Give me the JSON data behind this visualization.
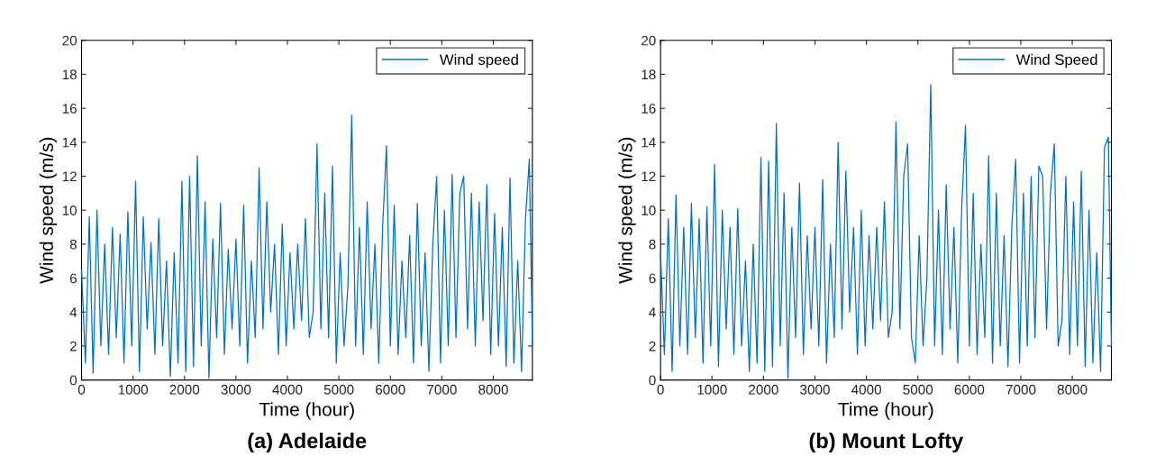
{
  "chart_data": [
    {
      "type": "line",
      "xlabel": "Time (hour)",
      "ylabel": "Wind speed (m/s)",
      "annotations": [
        "(a) Adelaide"
      ],
      "x": [
        0,
        75,
        150,
        225,
        300,
        375,
        450,
        525,
        600,
        675,
        750,
        825,
        900,
        975,
        1050,
        1125,
        1200,
        1275,
        1350,
        1425,
        1500,
        1575,
        1650,
        1725,
        1800,
        1875,
        1950,
        2025,
        2100,
        2175,
        2250,
        2325,
        2400,
        2475,
        2550,
        2625,
        2700,
        2775,
        2850,
        2925,
        3000,
        3075,
        3150,
        3225,
        3300,
        3375,
        3450,
        3525,
        3600,
        3675,
        3750,
        3825,
        3900,
        3975,
        4050,
        4125,
        4200,
        4275,
        4350,
        4425,
        4500,
        4575,
        4650,
        4725,
        4800,
        4875,
        4950,
        5025,
        5100,
        5175,
        5250,
        5325,
        5400,
        5475,
        5550,
        5625,
        5700,
        5775,
        5850,
        5925,
        6000,
        6075,
        6150,
        6225,
        6300,
        6375,
        6450,
        6525,
        6600,
        6675,
        6750,
        6825,
        6900,
        6975,
        7050,
        7125,
        7200,
        7275,
        7350,
        7425,
        7500,
        7575,
        7650,
        7725,
        7800,
        7875,
        7950,
        8025,
        8100,
        8175,
        8250,
        8325,
        8400,
        8475,
        8550,
        8625,
        8700,
        8760
      ],
      "series": [
        {
          "name": "Wind speed",
          "color": "#0072bd",
          "values": [
            6.5,
            1.0,
            9.6,
            0.4,
            10.0,
            2.0,
            8.0,
            1.5,
            9.0,
            2.5,
            8.6,
            1.0,
            9.9,
            2.0,
            11.7,
            0.5,
            9.6,
            3.0,
            8.1,
            1.5,
            9.5,
            2.0,
            7.0,
            0.2,
            7.5,
            1.0,
            11.7,
            0.5,
            12.0,
            0.8,
            13.2,
            2.0,
            10.5,
            0.1,
            8.3,
            2.5,
            10.4,
            1.5,
            7.7,
            3.0,
            8.3,
            2.0,
            10.3,
            1.0,
            7.0,
            2.5,
            12.5,
            3.0,
            10.5,
            4.0,
            8.0,
            1.5,
            9.2,
            2.0,
            7.5,
            3.0,
            8.0,
            3.5,
            9.5,
            2.5,
            4.0,
            13.9,
            3.0,
            11.0,
            2.5,
            12.6,
            1.0,
            7.5,
            2.0,
            5.5,
            15.6,
            2.0,
            9.0,
            1.5,
            10.5,
            3.0,
            8.0,
            1.0,
            9.0,
            13.8,
            2.0,
            10.3,
            1.5,
            7.0,
            2.5,
            8.5,
            1.0,
            10.4,
            2.0,
            7.5,
            0.5,
            8.0,
            12.0,
            1.0,
            10.0,
            2.0,
            12.1,
            2.5,
            11.0,
            12.0,
            3.0,
            11.0,
            2.0,
            10.5,
            3.5,
            11.5,
            1.5,
            9.8,
            2.0,
            9.0,
            0.8,
            11.9,
            1.0,
            7.0,
            0.5,
            9.5,
            13.0,
            2.0
          ]
        }
      ],
      "xlim": [
        0,
        8760
      ],
      "ylim": [
        0,
        20
      ],
      "xticks": [
        0,
        1000,
        2000,
        3000,
        4000,
        5000,
        6000,
        7000,
        8000
      ],
      "yticks": [
        0,
        2,
        4,
        6,
        8,
        10,
        12,
        14,
        16,
        18,
        20
      ],
      "grid": false,
      "legend": "top right",
      "line_style": "solid",
      "marker": "none"
    },
    {
      "type": "line",
      "xlabel": "Time (hour)",
      "ylabel": "Wind speed (m/s)",
      "annotations": [
        "(b) Mount Lofty"
      ],
      "x": [
        0,
        75,
        150,
        225,
        300,
        375,
        450,
        525,
        600,
        675,
        750,
        825,
        900,
        975,
        1050,
        1125,
        1200,
        1275,
        1350,
        1425,
        1500,
        1575,
        1650,
        1725,
        1800,
        1875,
        1950,
        2025,
        2100,
        2175,
        2250,
        2325,
        2400,
        2475,
        2550,
        2625,
        2700,
        2775,
        2850,
        2925,
        3000,
        3075,
        3150,
        3225,
        3300,
        3375,
        3450,
        3525,
        3600,
        3675,
        3750,
        3825,
        3900,
        3975,
        4050,
        4125,
        4200,
        4275,
        4350,
        4425,
        4500,
        4575,
        4650,
        4725,
        4800,
        4875,
        4950,
        5025,
        5100,
        5175,
        5250,
        5325,
        5400,
        5475,
        5550,
        5625,
        5700,
        5775,
        5850,
        5925,
        6000,
        6075,
        6150,
        6225,
        6300,
        6375,
        6450,
        6525,
        6600,
        6675,
        6750,
        6825,
        6900,
        6975,
        7050,
        7125,
        7200,
        7275,
        7350,
        7425,
        7500,
        7575,
        7650,
        7725,
        7800,
        7875,
        7950,
        8025,
        8100,
        8175,
        8250,
        8325,
        8400,
        8475,
        8550,
        8625,
        8700,
        8760
      ],
      "series": [
        {
          "name": "Wind Speed",
          "color": "#0072bd",
          "values": [
            7.5,
            1.5,
            9.5,
            0.5,
            10.9,
            2.0,
            9.0,
            1.5,
            10.4,
            2.5,
            9.5,
            1.0,
            10.2,
            2.0,
            12.7,
            0.8,
            10.0,
            3.0,
            9.0,
            1.5,
            10.1,
            2.0,
            7.0,
            0.5,
            8.0,
            1.0,
            13.1,
            0.5,
            12.9,
            0.8,
            15.1,
            2.0,
            11.0,
            0.1,
            9.0,
            2.5,
            11.6,
            1.5,
            8.5,
            3.0,
            9.0,
            2.0,
            11.8,
            1.0,
            8.0,
            2.5,
            14.0,
            3.0,
            12.3,
            4.0,
            9.0,
            1.5,
            10.0,
            2.0,
            8.5,
            3.0,
            9.0,
            3.5,
            10.5,
            2.5,
            4.0,
            15.2,
            3.0,
            12.0,
            13.9,
            2.5,
            1.0,
            8.5,
            2.0,
            6.0,
            17.4,
            2.0,
            10.0,
            1.5,
            11.5,
            3.0,
            9.0,
            1.0,
            10.0,
            15.0,
            2.0,
            11.0,
            1.5,
            8.0,
            2.5,
            13.2,
            1.0,
            11.0,
            2.0,
            8.5,
            0.8,
            9.0,
            13.0,
            1.0,
            11.0,
            2.0,
            12.0,
            2.5,
            12.6,
            12.0,
            3.0,
            11.0,
            13.9,
            2.0,
            3.5,
            12.0,
            1.5,
            10.5,
            2.0,
            12.3,
            0.8,
            10.0,
            1.0,
            7.5,
            0.5,
            13.7,
            14.3,
            2.0
          ]
        }
      ],
      "xlim": [
        0,
        8760
      ],
      "ylim": [
        0,
        20
      ],
      "xticks": [
        0,
        1000,
        2000,
        3000,
        4000,
        5000,
        6000,
        7000,
        8000
      ],
      "yticks": [
        0,
        2,
        4,
        6,
        8,
        10,
        12,
        14,
        16,
        18,
        20
      ],
      "grid": false,
      "legend": "top right",
      "line_style": "solid",
      "marker": "none"
    }
  ]
}
